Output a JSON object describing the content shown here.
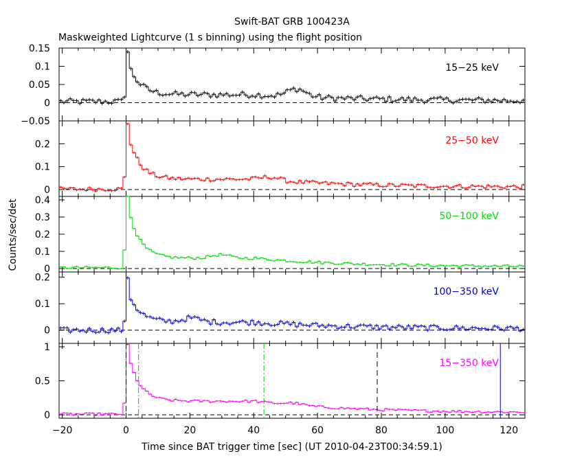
{
  "chart_data": {
    "type": "line",
    "title": "Swift-BAT GRB 100423A",
    "subtitle": "Maskweighted Lightcurve (1 s binning) using the flight position",
    "xlabel": "Time since BAT trigger time [sec] (UT 2010-04-23T00:34:59.1)",
    "ylabel": "Counts/sec/det",
    "xlim": [
      -21,
      125
    ],
    "xticks": [
      -20,
      0,
      20,
      40,
      60,
      80,
      100,
      120
    ],
    "xtick_labels": [
      "−20",
      "0",
      "20",
      "40",
      "60",
      "80",
      "100",
      "120"
    ],
    "panels": [
      {
        "name": "15-25",
        "band_label": "15−25 keV",
        "color": "#000000",
        "ylim": [
          -0.05,
          0.15
        ],
        "yticks": [
          -0.05,
          0,
          0.05,
          0.1,
          0.15
        ],
        "ytick_labels": [
          "−0.05",
          "0",
          "0.05",
          "0.1",
          "0.15"
        ],
        "profile": {
          "base": 0.003,
          "rise": 0.04,
          "peak": 0.14,
          "decay_fast": 0.09,
          "plateau": 0.022,
          "tail": 0.005,
          "noise": 0.008,
          "bump_t": 53,
          "bump_a": 0.022
        }
      },
      {
        "name": "25-50",
        "band_label": "25−50 keV",
        "color": "#ff0000",
        "ylim": [
          -0.03,
          0.3
        ],
        "yticks": [
          0,
          0.1,
          0.2
        ],
        "ytick_labels": [
          "0",
          "0.1",
          "0.2"
        ],
        "profile": {
          "base": 0.002,
          "rise": 0.1,
          "peak": 0.29,
          "decay_fast": 0.2,
          "plateau": 0.045,
          "tail": 0.01,
          "noise": 0.009,
          "bump_t": 45,
          "bump_a": 0.015
        }
      },
      {
        "name": "50-100",
        "band_label": "50−100 keV",
        "color": "#00dd00",
        "ylim": [
          -0.02,
          0.42
        ],
        "yticks": [
          0,
          0.1,
          0.2,
          0.3,
          0.4
        ],
        "ytick_labels": [
          "0",
          "0.1",
          "0.2",
          "0.3",
          "0.4"
        ],
        "profile": {
          "base": 0.005,
          "rise": 0.2,
          "peak": 0.42,
          "decay_fast": 0.3,
          "plateau": 0.06,
          "tail": 0.01,
          "noise": 0.008,
          "bump_t": 29,
          "bump_a": 0.02
        }
      },
      {
        "name": "100-350",
        "band_label": "100−350 keV",
        "color": "#0000cc",
        "ylim": [
          -0.05,
          0.22
        ],
        "yticks": [
          0,
          0.1,
          0.2
        ],
        "ytick_labels": [
          "0",
          "0.1",
          "0.2"
        ],
        "profile": {
          "base": 0.0,
          "rise": 0.05,
          "peak": 0.2,
          "decay_fast": 0.12,
          "plateau": 0.03,
          "tail": 0.005,
          "noise": 0.01,
          "bump_t": 20,
          "bump_a": 0.015
        }
      },
      {
        "name": "15-350",
        "band_label": "15−350 keV",
        "color": "#ff00ff",
        "ylim": [
          -0.05,
          1.05
        ],
        "yticks": [
          0,
          0.5,
          1
        ],
        "ytick_labels": [
          "0",
          "0.5",
          "1"
        ],
        "profile": {
          "base": 0.01,
          "rise": 0.3,
          "peak": 1.03,
          "decay_fast": 0.75,
          "plateau": 0.2,
          "tail": 0.03,
          "noise": 0.018,
          "bump_t": 52,
          "bump_a": 0.03
        },
        "vlines": [
          {
            "x": 0,
            "color": "#000000",
            "style": "dash"
          },
          {
            "x": 3.9,
            "color": "#00cc00",
            "style": "dashdot"
          },
          {
            "x": 43.2,
            "color": "#00cc00",
            "style": "dashdot"
          },
          {
            "x": 78.7,
            "color": "#000000",
            "style": "dash"
          },
          {
            "x": 117.3,
            "color": "#0000cc",
            "style": "solid"
          }
        ]
      }
    ]
  }
}
